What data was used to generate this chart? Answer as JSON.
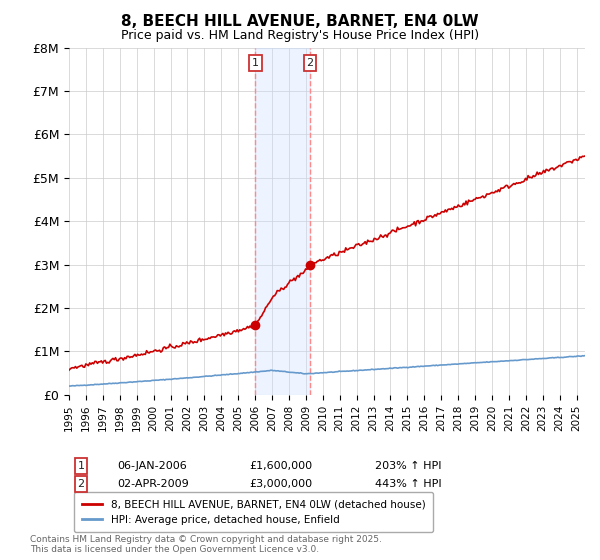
{
  "title": "8, BEECH HILL AVENUE, BARNET, EN4 0LW",
  "subtitle": "Price paid vs. HM Land Registry's House Price Index (HPI)",
  "ylim": [
    0,
    8000000
  ],
  "yticks": [
    0,
    1000000,
    2000000,
    3000000,
    4000000,
    5000000,
    6000000,
    7000000,
    8000000
  ],
  "ytick_labels": [
    "£0",
    "£1M",
    "£2M",
    "£3M",
    "£4M",
    "£5M",
    "£6M",
    "£7M",
    "£8M"
  ],
  "x_start": 1995.0,
  "x_end": 2025.5,
  "sale1_x": 2006.02,
  "sale1_y": 1600000,
  "sale2_x": 2009.25,
  "sale2_y": 3000000,
  "sale1_label": "06-JAN-2006",
  "sale1_price": "£1,600,000",
  "sale1_hpi": "203% ↑ HPI",
  "sale2_label": "02-APR-2009",
  "sale2_price": "£3,000,000",
  "sale2_hpi": "443% ↑ HPI",
  "red_color": "#cc0000",
  "blue_color": "#6699cc",
  "shade_color": "#cce0ff",
  "vline_color": "#ff8888",
  "background_color": "#ffffff",
  "grid_color": "#cccccc",
  "legend1": "8, BEECH HILL AVENUE, BARNET, EN4 0LW (detached house)",
  "legend2": "HPI: Average price, detached house, Enfield",
  "footnote": "Contains HM Land Registry data © Crown copyright and database right 2025.\nThis data is licensed under the Open Government Licence v3.0.",
  "xticks": [
    1995,
    1996,
    1997,
    1998,
    1999,
    2000,
    2001,
    2002,
    2003,
    2004,
    2005,
    2006,
    2007,
    2008,
    2009,
    2010,
    2011,
    2012,
    2013,
    2014,
    2015,
    2016,
    2017,
    2018,
    2019,
    2020,
    2021,
    2022,
    2023,
    2024,
    2025
  ]
}
